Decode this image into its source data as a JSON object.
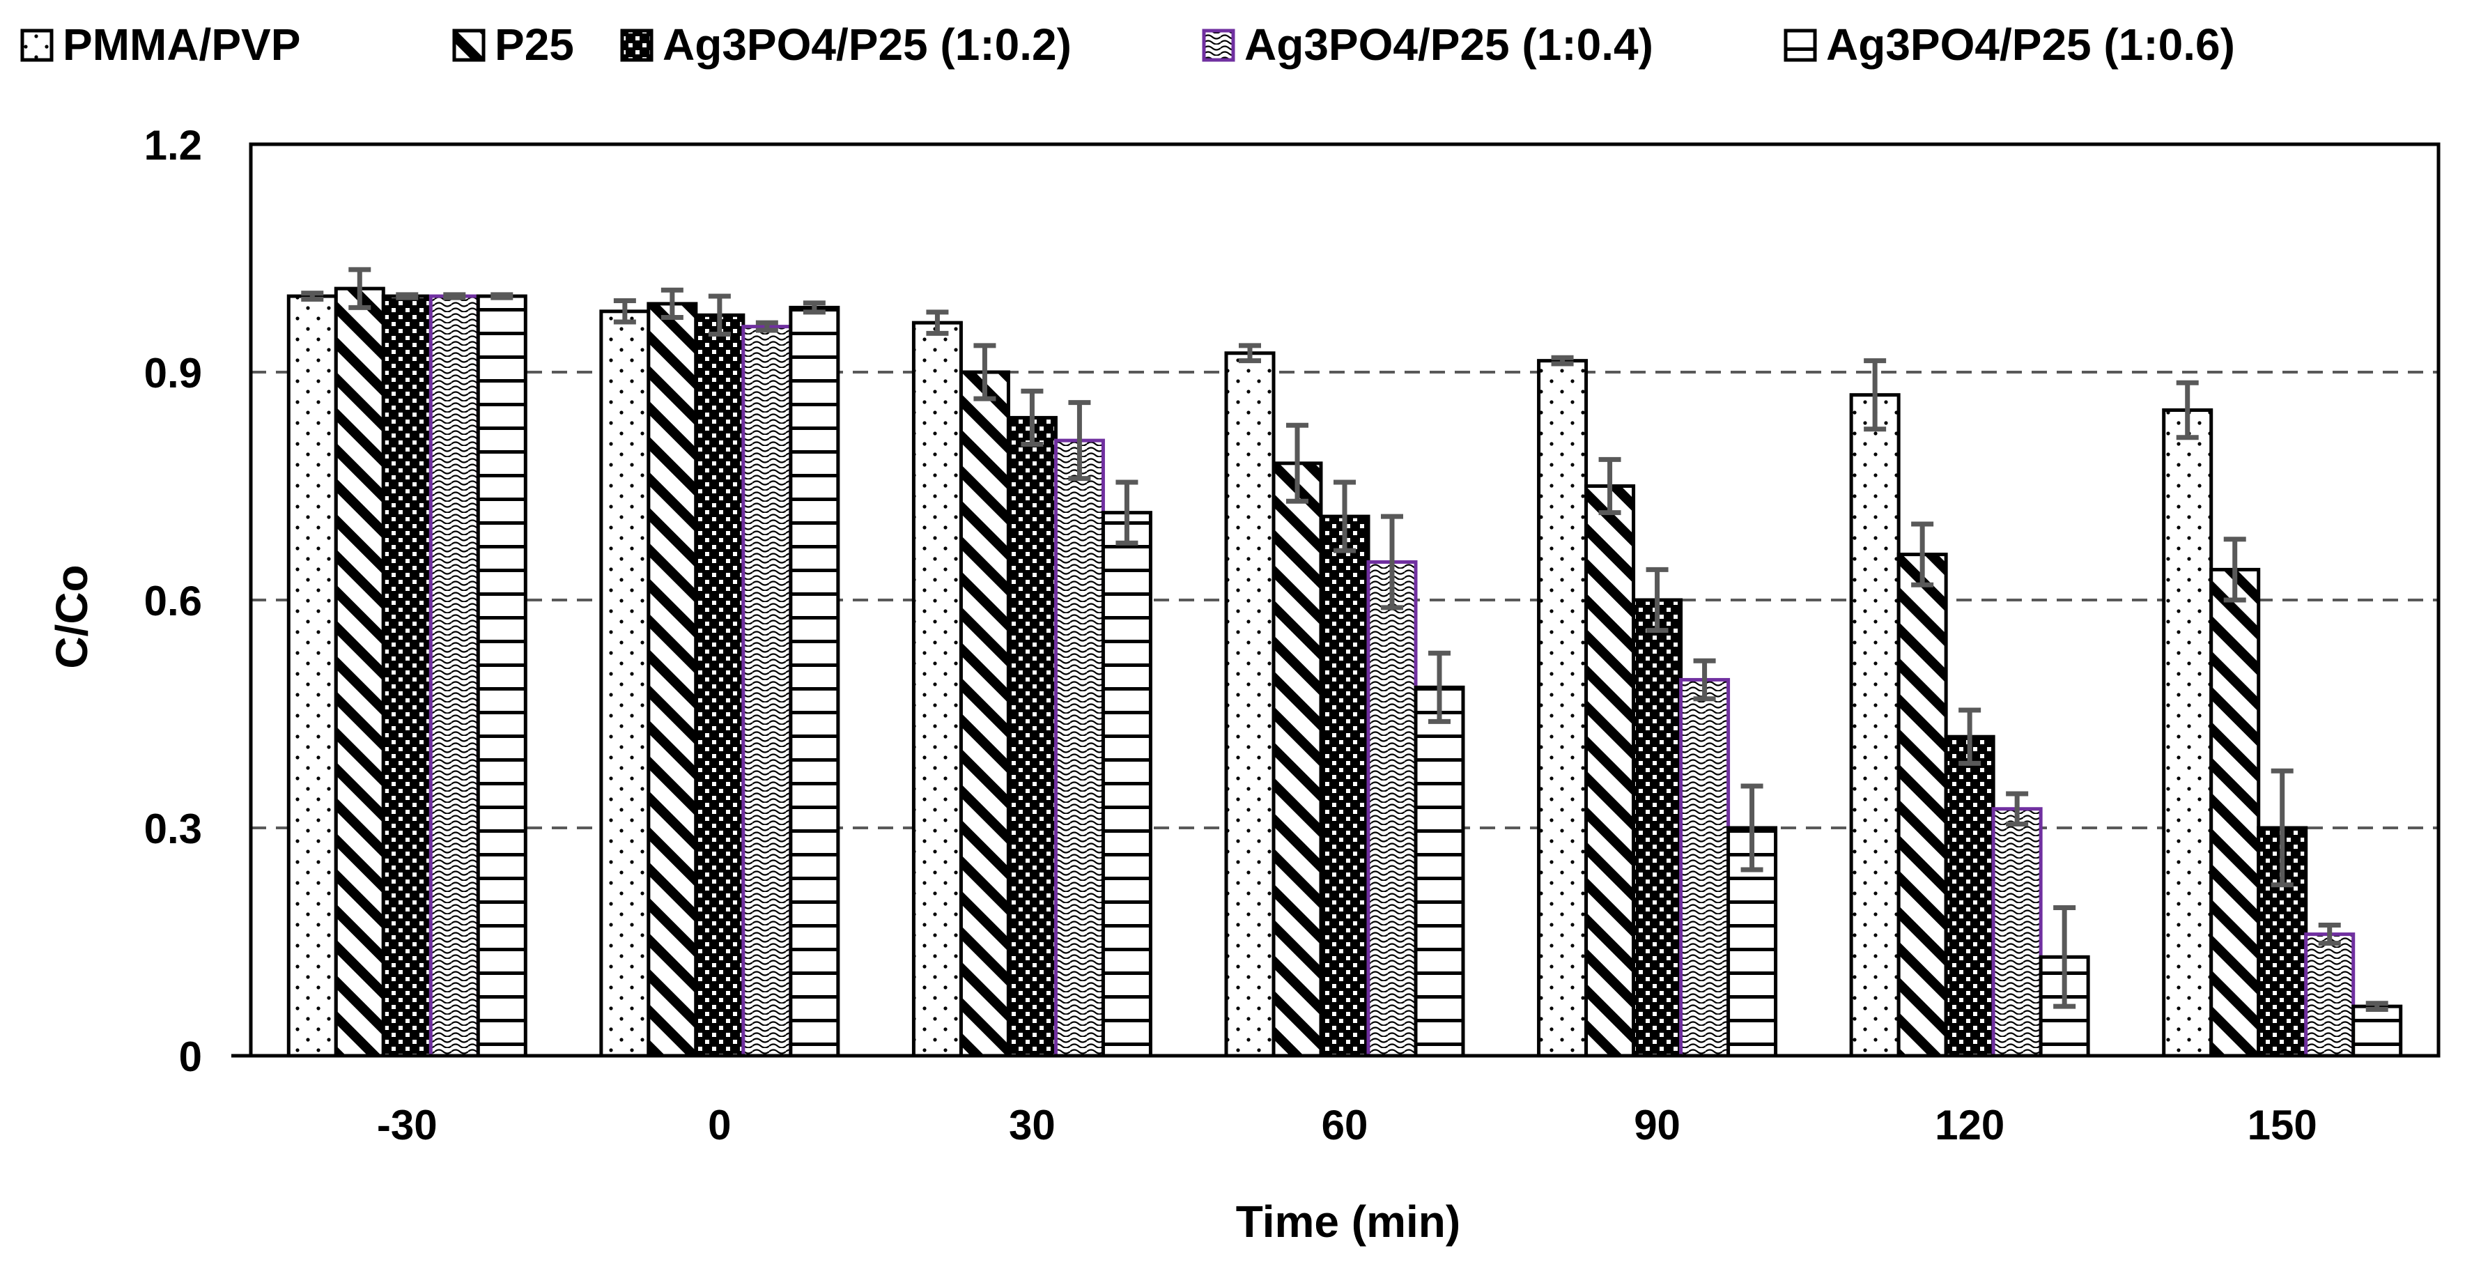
{
  "chart_data": {
    "type": "bar",
    "title": "",
    "xlabel": "Time (min)",
    "ylabel": "C/Co",
    "ylim": [
      0,
      1.2
    ],
    "yticks": [
      0,
      0.3,
      0.6,
      0.9,
      1.2
    ],
    "ytick_labels": [
      "0",
      "0.3",
      "0.6",
      "0.9",
      "1.2"
    ],
    "grid": true,
    "legend_position": "top",
    "categories": [
      "-30",
      "0",
      "30",
      "60",
      "90",
      "120",
      "150"
    ],
    "series": [
      {
        "name": "PMMA/PVP",
        "pattern": "dots",
        "color": "#000000",
        "values": [
          1.0,
          0.98,
          0.965,
          0.925,
          0.915,
          0.87,
          0.85
        ],
        "errors": [
          0.004,
          0.014,
          0.014,
          0.01,
          0.004,
          0.045,
          0.036
        ]
      },
      {
        "name": "P25",
        "pattern": "diagonal",
        "color": "#000000",
        "values": [
          1.01,
          0.99,
          0.9,
          0.78,
          0.75,
          0.66,
          0.64
        ],
        "errors": [
          0.025,
          0.018,
          0.035,
          0.05,
          0.035,
          0.04,
          0.04
        ]
      },
      {
        "name": "Ag3PO4/P25 (1:0.2)",
        "pattern": "checker",
        "color": "#000000",
        "values": [
          1.0,
          0.975,
          0.84,
          0.71,
          0.6,
          0.42,
          0.3
        ],
        "errors": [
          0.002,
          0.025,
          0.035,
          0.045,
          0.04,
          0.035,
          0.075
        ]
      },
      {
        "name": "Ag3PO4/P25 (1:0.4)",
        "pattern": "wave",
        "color": "#7030A0",
        "values": [
          1.0,
          0.96,
          0.81,
          0.65,
          0.495,
          0.325,
          0.16
        ],
        "errors": [
          0.002,
          0.005,
          0.05,
          0.06,
          0.025,
          0.02,
          0.012
        ]
      },
      {
        "name": "Ag3PO4/P25 (1:0.6)",
        "pattern": "horizontal",
        "color": "#000000",
        "values": [
          1.0,
          0.985,
          0.715,
          0.485,
          0.3,
          0.13,
          0.065
        ],
        "errors": [
          0.002,
          0.006,
          0.04,
          0.045,
          0.055,
          0.065,
          0.004
        ]
      }
    ]
  }
}
